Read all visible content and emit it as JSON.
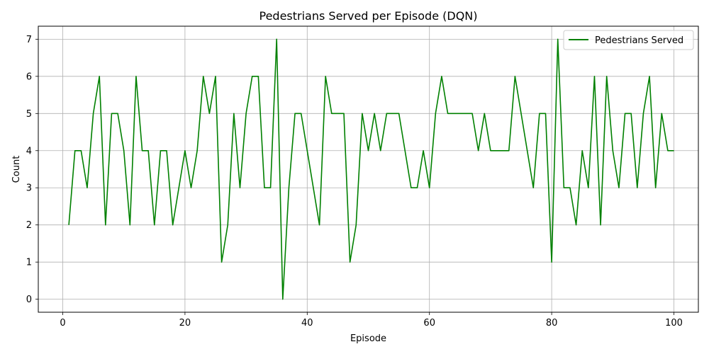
{
  "chart_data": {
    "type": "line",
    "title": "Pedestrians Served per Episode (DQN)",
    "xlabel": "Episode",
    "ylabel": "Count",
    "xlim": [
      -4,
      104
    ],
    "ylim": [
      -0.35,
      7.35
    ],
    "xticks": [
      0,
      20,
      40,
      60,
      80,
      100
    ],
    "yticks": [
      0,
      1,
      2,
      3,
      4,
      5,
      6,
      7
    ],
    "grid": true,
    "legend_position": "top-right",
    "series": [
      {
        "name": "Pedestrians Served",
        "color": "#008000",
        "x": [
          1,
          2,
          3,
          4,
          5,
          6,
          7,
          8,
          9,
          10,
          11,
          12,
          13,
          14,
          15,
          16,
          17,
          18,
          19,
          20,
          21,
          22,
          23,
          24,
          25,
          26,
          27,
          28,
          29,
          30,
          31,
          32,
          33,
          34,
          35,
          36,
          37,
          38,
          39,
          40,
          41,
          42,
          43,
          44,
          45,
          46,
          47,
          48,
          49,
          50,
          51,
          52,
          53,
          54,
          55,
          56,
          57,
          58,
          59,
          60,
          61,
          62,
          63,
          64,
          65,
          66,
          67,
          68,
          69,
          70,
          71,
          72,
          73,
          74,
          75,
          76,
          77,
          78,
          79,
          80,
          81,
          82,
          83,
          84,
          85,
          86,
          87,
          88,
          89,
          90,
          91,
          92,
          93,
          94,
          95,
          96,
          97,
          98,
          99,
          100
        ],
        "values": [
          2,
          4,
          4,
          3,
          5,
          6,
          2,
          5,
          5,
          4,
          2,
          6,
          4,
          4,
          2,
          4,
          4,
          2,
          3,
          4,
          3,
          4,
          6,
          5,
          6,
          1,
          2,
          5,
          3,
          5,
          6,
          6,
          3,
          3,
          7,
          0,
          3,
          5,
          5,
          4,
          3,
          2,
          6,
          5,
          5,
          5,
          1,
          2,
          5,
          4,
          5,
          4,
          5,
          5,
          5,
          4,
          3,
          3,
          4,
          3,
          5,
          6,
          5,
          5,
          5,
          5,
          5,
          4,
          5,
          4,
          4,
          4,
          4,
          6,
          5,
          4,
          3,
          5,
          5,
          1,
          7,
          3,
          3,
          2,
          4,
          3,
          6,
          2,
          6,
          4,
          3,
          5,
          5,
          3,
          5,
          6,
          3,
          5,
          4,
          4
        ]
      }
    ]
  }
}
